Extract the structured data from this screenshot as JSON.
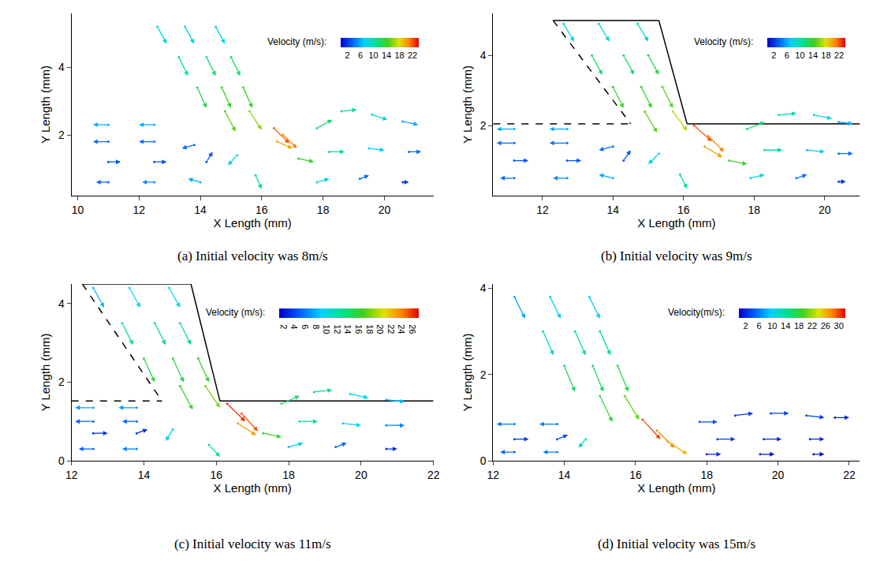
{
  "chart_data": [
    {
      "type": "quiver",
      "title": "(a) Initial velocity was 8m/s",
      "xlabel": "X Length (mm)",
      "ylabel": "Y Length (mm)",
      "xlim": [
        9.8,
        21.6
      ],
      "ylim": [
        0.2,
        5.6
      ],
      "xticks": [
        10,
        12,
        14,
        16,
        18,
        20
      ],
      "yticks": [
        2,
        4
      ],
      "colorbar": {
        "title": "Velocity (m/s):",
        "range": [
          0,
          24
        ],
        "ticks": [
          2,
          6,
          10,
          14,
          18,
          22
        ]
      },
      "vectors": [
        [
          12.6,
          5.2,
          0.3,
          -0.5,
          8
        ],
        [
          13.5,
          5.2,
          0.3,
          -0.5,
          8
        ],
        [
          14.5,
          5.2,
          0.3,
          -0.5,
          8
        ],
        [
          13.3,
          4.3,
          0.3,
          -0.55,
          11
        ],
        [
          14.2,
          4.3,
          0.3,
          -0.55,
          12
        ],
        [
          15.0,
          4.3,
          0.3,
          -0.55,
          12
        ],
        [
          13.9,
          3.4,
          0.3,
          -0.6,
          13
        ],
        [
          14.7,
          3.4,
          0.3,
          -0.6,
          14
        ],
        [
          15.4,
          3.4,
          0.3,
          -0.6,
          14
        ],
        [
          14.8,
          2.7,
          0.35,
          -0.6,
          15
        ],
        [
          15.6,
          2.7,
          0.4,
          -0.55,
          16
        ],
        [
          16.4,
          2.2,
          0.5,
          -0.45,
          22
        ],
        [
          16.7,
          2.0,
          0.45,
          -0.4,
          21
        ],
        [
          16.5,
          1.8,
          0.5,
          -0.2,
          20
        ],
        [
          11.0,
          2.3,
          -0.5,
          0,
          6
        ],
        [
          12.5,
          2.3,
          -0.5,
          0,
          6
        ],
        [
          11.0,
          1.8,
          -0.5,
          0,
          4
        ],
        [
          12.5,
          1.8,
          -0.5,
          0,
          4
        ],
        [
          13.8,
          1.7,
          -0.4,
          -0.1,
          4
        ],
        [
          11.0,
          1.2,
          0.4,
          0,
          3
        ],
        [
          12.5,
          1.2,
          0.4,
          0,
          3
        ],
        [
          14.2,
          1.2,
          0.2,
          0.3,
          3
        ],
        [
          11.0,
          0.6,
          -0.4,
          0,
          4
        ],
        [
          12.5,
          0.6,
          -0.4,
          0,
          5
        ],
        [
          14.0,
          0.6,
          -0.4,
          0.1,
          6
        ],
        [
          15.2,
          1.4,
          -0.3,
          -0.3,
          8
        ],
        [
          15.8,
          0.8,
          0.2,
          -0.4,
          10
        ],
        [
          17.2,
          1.3,
          0.5,
          -0.1,
          14
        ],
        [
          17.8,
          2.2,
          0.5,
          0.25,
          12
        ],
        [
          18.6,
          2.7,
          0.5,
          0.05,
          10
        ],
        [
          19.6,
          2.6,
          0.5,
          -0.15,
          8
        ],
        [
          20.6,
          2.4,
          0.5,
          -0.1,
          6
        ],
        [
          18.2,
          1.5,
          0.5,
          0,
          10
        ],
        [
          19.5,
          1.6,
          0.5,
          -0.05,
          7
        ],
        [
          20.8,
          1.5,
          0.4,
          0,
          4
        ],
        [
          17.8,
          0.6,
          0.4,
          0.1,
          8
        ],
        [
          19.2,
          0.7,
          0.3,
          0.1,
          4
        ],
        [
          20.6,
          0.6,
          0.2,
          0,
          2
        ]
      ]
    },
    {
      "type": "quiver",
      "title": "(b) Initial velocity was 9m/s",
      "xlabel": "X Length (mm)",
      "ylabel": "Y Length (mm)",
      "xlim": [
        10.6,
        21
      ],
      "ylim": [
        0,
        5.2
      ],
      "xticks": [
        12,
        14,
        16,
        18,
        20
      ],
      "yticks": [
        2,
        4
      ],
      "colorbar": {
        "title": "Velocity (m/s):",
        "range": [
          0,
          24
        ],
        "ticks": [
          2,
          6,
          10,
          14,
          18,
          22
        ]
      },
      "vectors": [
        [
          12.6,
          4.9,
          0.3,
          -0.5,
          8
        ],
        [
          13.6,
          4.9,
          0.3,
          -0.5,
          9
        ],
        [
          14.7,
          4.9,
          0.3,
          -0.5,
          9
        ],
        [
          13.4,
          4.0,
          0.3,
          -0.55,
          12
        ],
        [
          14.3,
          4.0,
          0.3,
          -0.55,
          12
        ],
        [
          15.0,
          4.0,
          0.3,
          -0.55,
          13
        ],
        [
          14.0,
          3.1,
          0.3,
          -0.6,
          14
        ],
        [
          14.8,
          3.1,
          0.3,
          -0.6,
          14
        ],
        [
          15.4,
          3.1,
          0.3,
          -0.6,
          15
        ],
        [
          14.9,
          2.4,
          0.35,
          -0.6,
          15
        ],
        [
          15.7,
          2.4,
          0.4,
          -0.55,
          17
        ],
        [
          16.3,
          2.0,
          0.5,
          -0.45,
          22
        ],
        [
          16.7,
          1.7,
          0.45,
          -0.45,
          21
        ],
        [
          16.6,
          1.4,
          0.5,
          -0.3,
          20
        ],
        [
          11.2,
          1.9,
          -0.5,
          0,
          6
        ],
        [
          12.7,
          1.9,
          -0.5,
          0,
          6
        ],
        [
          11.2,
          1.5,
          -0.5,
          0,
          4
        ],
        [
          12.7,
          1.5,
          -0.5,
          0,
          4
        ],
        [
          14.0,
          1.4,
          -0.4,
          -0.1,
          4
        ],
        [
          11.2,
          1.0,
          0.4,
          0,
          3
        ],
        [
          12.7,
          1.0,
          0.4,
          0,
          3
        ],
        [
          14.3,
          1.0,
          0.2,
          0.3,
          3
        ],
        [
          11.2,
          0.5,
          -0.4,
          0,
          4
        ],
        [
          12.7,
          0.5,
          -0.4,
          0,
          5
        ],
        [
          14.0,
          0.5,
          -0.4,
          0.1,
          6
        ],
        [
          15.3,
          1.2,
          -0.3,
          -0.3,
          8
        ],
        [
          15.9,
          0.6,
          0.2,
          -0.4,
          10
        ],
        [
          17.3,
          1.0,
          0.5,
          -0.1,
          14
        ],
        [
          17.8,
          1.9,
          0.5,
          0.2,
          12
        ],
        [
          18.7,
          2.3,
          0.5,
          0.05,
          10
        ],
        [
          19.7,
          2.3,
          0.5,
          -0.1,
          8
        ],
        [
          20.4,
          2.1,
          0.4,
          -0.05,
          6
        ],
        [
          18.3,
          1.3,
          0.5,
          0,
          10
        ],
        [
          19.5,
          1.3,
          0.5,
          -0.05,
          7
        ],
        [
          20.4,
          1.2,
          0.4,
          0,
          4
        ],
        [
          17.9,
          0.5,
          0.4,
          0.1,
          8
        ],
        [
          19.2,
          0.5,
          0.3,
          0.1,
          4
        ],
        [
          20.4,
          0.4,
          0.2,
          0,
          2
        ]
      ],
      "boundary": [
        {
          "x": [
            12.3,
            15.3
          ],
          "y": [
            5.0,
            5.0
          ],
          "color": "#000000",
          "line_style": "solid"
        },
        {
          "x": [
            15.3,
            16.1
          ],
          "y": [
            5.0,
            2.05
          ],
          "color": "#000000",
          "line_style": "solid"
        },
        {
          "x": [
            16.1,
            21.0
          ],
          "y": [
            2.05,
            2.05
          ],
          "color": "#000000",
          "line_style": "solid"
        },
        {
          "x": [
            12.3,
            14.5
          ],
          "y": [
            5.0,
            2.05
          ],
          "color": "#000000",
          "line_style": "dashed"
        },
        {
          "x": [
            10.6,
            14.5
          ],
          "y": [
            2.05,
            2.05
          ],
          "color": "#000000",
          "line_style": "dashed"
        }
      ]
    },
    {
      "type": "quiver",
      "title": "(c) Initial velocity was 11m/s",
      "xlabel": "X Length (mm)",
      "ylabel": "Y Length (mm)",
      "xlim": [
        12,
        22
      ],
      "ylim": [
        0,
        4.5
      ],
      "xticks": [
        12,
        14,
        16,
        18,
        20,
        22
      ],
      "yticks": [
        0,
        2,
        4
      ],
      "colorbar": {
        "title": "Velocity (m/s):",
        "range": [
          1,
          27
        ],
        "ticks": [
          2,
          4,
          6,
          8,
          10,
          12,
          14,
          16,
          18,
          20,
          22,
          24,
          26
        ]
      },
      "vectors": [
        [
          12.6,
          4.4,
          0.3,
          -0.5,
          8
        ],
        [
          13.6,
          4.4,
          0.3,
          -0.5,
          9
        ],
        [
          14.7,
          4.4,
          0.3,
          -0.5,
          10
        ],
        [
          13.4,
          3.5,
          0.3,
          -0.55,
          12
        ],
        [
          14.3,
          3.5,
          0.3,
          -0.55,
          13
        ],
        [
          15.0,
          3.5,
          0.3,
          -0.55,
          13
        ],
        [
          14.0,
          2.6,
          0.3,
          -0.6,
          15
        ],
        [
          14.8,
          2.6,
          0.3,
          -0.6,
          15
        ],
        [
          15.5,
          2.6,
          0.3,
          -0.6,
          16
        ],
        [
          15.0,
          1.9,
          0.35,
          -0.6,
          16
        ],
        [
          15.7,
          1.9,
          0.4,
          -0.55,
          18
        ],
        [
          16.3,
          1.45,
          0.5,
          -0.45,
          26
        ],
        [
          16.7,
          1.2,
          0.45,
          -0.45,
          25
        ],
        [
          16.6,
          0.95,
          0.5,
          -0.3,
          23
        ],
        [
          12.6,
          1.35,
          -0.5,
          0,
          7
        ],
        [
          13.8,
          1.35,
          -0.5,
          0,
          7
        ],
        [
          12.6,
          1.0,
          -0.5,
          0,
          5
        ],
        [
          13.8,
          1.0,
          -0.4,
          0,
          5
        ],
        [
          12.6,
          0.7,
          0.4,
          0,
          3
        ],
        [
          13.8,
          0.7,
          0.3,
          0.1,
          3
        ],
        [
          12.6,
          0.3,
          -0.4,
          0,
          5
        ],
        [
          13.8,
          0.3,
          -0.4,
          0,
          6
        ],
        [
          14.8,
          0.8,
          -0.2,
          -0.3,
          9
        ],
        [
          15.8,
          0.4,
          0.3,
          -0.3,
          12
        ],
        [
          17.3,
          0.7,
          0.5,
          -0.1,
          16
        ],
        [
          17.8,
          1.45,
          0.5,
          0.2,
          14
        ],
        [
          18.7,
          1.75,
          0.5,
          0.05,
          12
        ],
        [
          19.7,
          1.7,
          0.5,
          -0.1,
          10
        ],
        [
          20.7,
          1.55,
          0.5,
          -0.05,
          8
        ],
        [
          18.3,
          1.0,
          0.5,
          0,
          12
        ],
        [
          19.5,
          0.95,
          0.5,
          -0.05,
          9
        ],
        [
          20.7,
          0.9,
          0.5,
          0,
          6
        ],
        [
          18.0,
          0.35,
          0.4,
          0.1,
          9
        ],
        [
          19.3,
          0.35,
          0.3,
          0.1,
          5
        ],
        [
          20.7,
          0.3,
          0.3,
          0,
          3
        ]
      ],
      "boundary": [
        {
          "x": [
            12.3,
            15.3
          ],
          "y": [
            4.5,
            4.5
          ],
          "color": "#000000",
          "line_style": "solid"
        },
        {
          "x": [
            15.3,
            16.1
          ],
          "y": [
            4.5,
            1.52
          ],
          "color": "#000000",
          "line_style": "solid"
        },
        {
          "x": [
            16.1,
            22.0
          ],
          "y": [
            1.52,
            1.52
          ],
          "color": "#000000",
          "line_style": "solid"
        },
        {
          "x": [
            12.3,
            14.5
          ],
          "y": [
            4.5,
            1.52
          ],
          "color": "#000000",
          "line_style": "dashed"
        },
        {
          "x": [
            12.0,
            14.5
          ],
          "y": [
            1.52,
            1.52
          ],
          "color": "#000000",
          "line_style": "dashed"
        }
      ]
    },
    {
      "type": "quiver",
      "title": "(d) Initial velocity was 15m/s",
      "xlabel": "X Length (mm)",
      "ylabel": "Y Length (mm)",
      "xlim": [
        12,
        22.3
      ],
      "ylim": [
        0,
        4.1
      ],
      "xticks": [
        12,
        14,
        16,
        18,
        20,
        22
      ],
      "yticks": [
        0,
        2,
        4
      ],
      "colorbar": {
        "title": "Velocity(m/s):",
        "range": [
          0,
          32
        ],
        "ticks": [
          2,
          6,
          10,
          14,
          18,
          22,
          26,
          30
        ]
      },
      "vectors": [
        [
          12.6,
          3.8,
          0.3,
          -0.5,
          8
        ],
        [
          13.6,
          3.8,
          0.3,
          -0.5,
          10
        ],
        [
          14.7,
          3.8,
          0.3,
          -0.5,
          10
        ],
        [
          13.4,
          3.0,
          0.3,
          -0.55,
          12
        ],
        [
          14.3,
          3.0,
          0.3,
          -0.55,
          14
        ],
        [
          15.0,
          3.0,
          0.3,
          -0.55,
          14
        ],
        [
          14.0,
          2.2,
          0.3,
          -0.6,
          16
        ],
        [
          14.8,
          2.2,
          0.3,
          -0.6,
          16
        ],
        [
          15.5,
          2.2,
          0.3,
          -0.6,
          17
        ],
        [
          15.0,
          1.5,
          0.35,
          -0.6,
          18
        ],
        [
          15.7,
          1.5,
          0.4,
          -0.55,
          20
        ],
        [
          16.2,
          0.95,
          0.5,
          -0.45,
          30
        ],
        [
          16.6,
          0.7,
          0.5,
          -0.4,
          28
        ],
        [
          16.9,
          0.45,
          0.55,
          -0.3,
          26
        ],
        [
          12.6,
          0.85,
          -0.5,
          0,
          6
        ],
        [
          13.8,
          0.85,
          -0.5,
          0,
          6
        ],
        [
          12.6,
          0.5,
          0.4,
          0,
          3
        ],
        [
          13.8,
          0.5,
          0.3,
          0.1,
          4
        ],
        [
          12.6,
          0.2,
          -0.4,
          0,
          5
        ],
        [
          13.8,
          0.2,
          -0.4,
          0,
          6
        ],
        [
          14.6,
          0.5,
          -0.2,
          -0.2,
          12
        ],
        [
          17.8,
          0.9,
          0.5,
          0,
          4
        ],
        [
          18.8,
          1.05,
          0.5,
          0.05,
          3
        ],
        [
          19.8,
          1.1,
          0.5,
          0,
          3
        ],
        [
          20.8,
          1.05,
          0.5,
          -0.05,
          3
        ],
        [
          21.6,
          1.0,
          0.4,
          0,
          2
        ],
        [
          18.3,
          0.5,
          0.5,
          0,
          3
        ],
        [
          19.6,
          0.5,
          0.5,
          0,
          2
        ],
        [
          20.9,
          0.5,
          0.4,
          0,
          2
        ],
        [
          18.0,
          0.15,
          0.4,
          0,
          2
        ],
        [
          19.5,
          0.15,
          0.4,
          0,
          1
        ],
        [
          21.0,
          0.15,
          0.3,
          0,
          1
        ]
      ]
    }
  ]
}
